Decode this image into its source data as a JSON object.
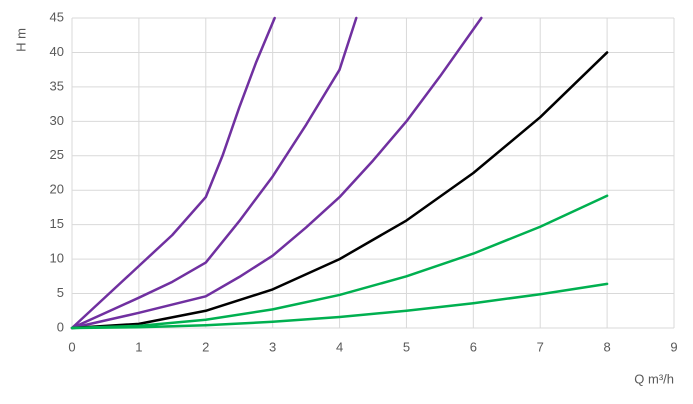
{
  "chart_data": {
    "type": "line",
    "xlabel": "Q m³/h",
    "ylabel": "H m",
    "xlim": [
      0,
      9
    ],
    "xticks": [
      0,
      1,
      2,
      3,
      4,
      5,
      6,
      7,
      8,
      9
    ],
    "ylim": [
      0,
      45
    ],
    "yticks": [
      0,
      5,
      10,
      15,
      20,
      25,
      30,
      35,
      40,
      45
    ],
    "grid": true,
    "series": [
      {
        "color": "#7030a0",
        "x": [
          0,
          0.5,
          1,
          1.5,
          2,
          2.25,
          2.5,
          2.75,
          3.03
        ],
        "values": [
          0,
          4.5,
          9,
          13.5,
          19,
          25,
          32,
          38.5,
          45
        ]
      },
      {
        "color": "#7030a0",
        "x": [
          0,
          0.5,
          1,
          1.5,
          2,
          2.5,
          3,
          3.5,
          4,
          4.25
        ],
        "values": [
          0,
          2.2,
          4.4,
          6.7,
          9.5,
          15.5,
          22,
          29.5,
          37.5,
          45
        ]
      },
      {
        "color": "#7030a0",
        "x": [
          0,
          1,
          2,
          2.5,
          3,
          3.5,
          4,
          4.5,
          5,
          5.5,
          6.12
        ],
        "values": [
          0,
          2.2,
          4.6,
          7.4,
          10.5,
          14.6,
          19,
          24.3,
          30,
          36.5,
          45
        ]
      },
      {
        "color": "#000000",
        "x": [
          0,
          1,
          2,
          3,
          4,
          5,
          6,
          7,
          8
        ],
        "values": [
          0,
          0.6,
          2.5,
          5.6,
          10,
          15.6,
          22.5,
          30.6,
          40
        ]
      },
      {
        "color": "#00b050",
        "x": [
          0,
          1,
          2,
          3,
          4,
          5,
          6,
          7,
          8
        ],
        "values": [
          0,
          0.3,
          1.2,
          2.7,
          4.8,
          7.5,
          10.8,
          14.7,
          19.2
        ]
      },
      {
        "color": "#00b050",
        "x": [
          0,
          1,
          2,
          3,
          4,
          5,
          6,
          7,
          8
        ],
        "values": [
          0,
          0.1,
          0.4,
          0.9,
          1.6,
          2.5,
          3.6,
          4.9,
          6.4
        ]
      }
    ]
  }
}
